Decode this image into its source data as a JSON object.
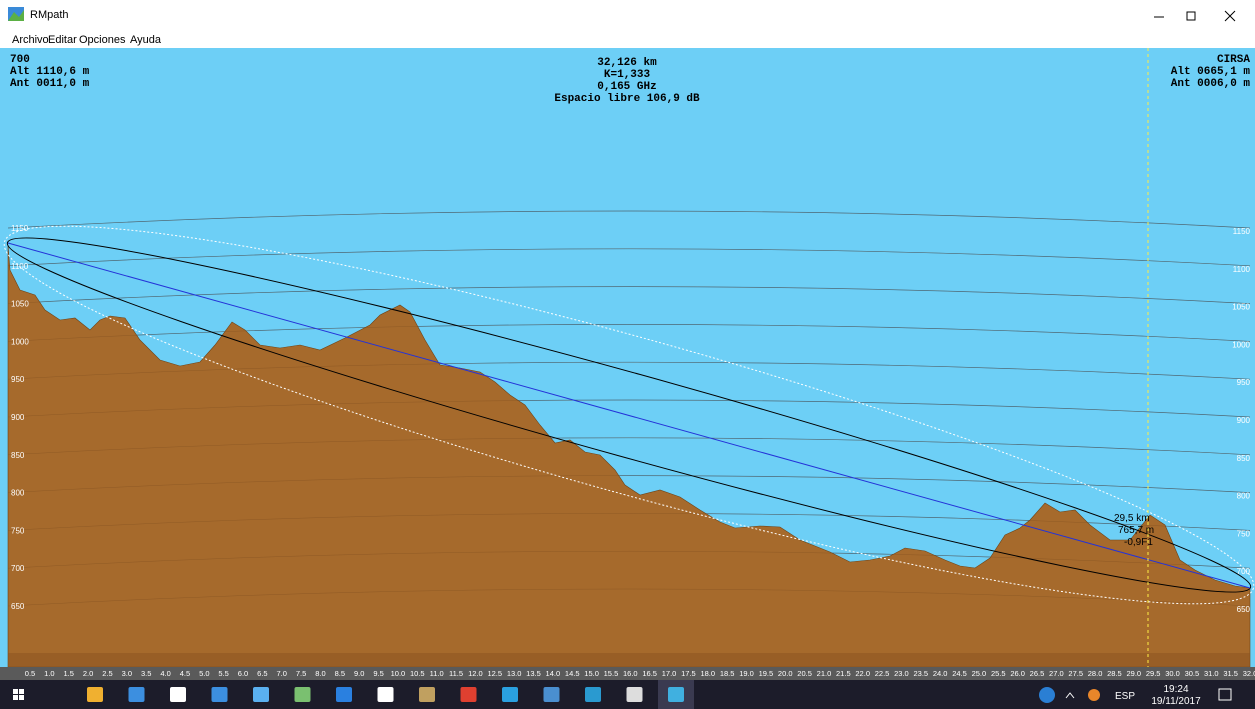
{
  "window": {
    "title": "RMpath"
  },
  "menu": [
    "Archivo",
    "Editar",
    "Opciones",
    "Ayuda"
  ],
  "left_station": {
    "name": "700",
    "alt": "Alt 1110,6 m",
    "ant": "Ant 0011,0 m"
  },
  "link": {
    "distance": "32,126 km",
    "k": "K=1,333",
    "frequency": "0,165 GHz",
    "free_space": "Espacio libre 106,9 dB"
  },
  "right_station": {
    "name": "CIRSA",
    "alt": "Alt 0665,1 m",
    "ant": "Ant 0006,0 m"
  },
  "elevation_labels": [
    "1150",
    "1100",
    "1050",
    "1000",
    "950",
    "900",
    "850",
    "800",
    "750",
    "700",
    "650"
  ],
  "km_labels": [
    "0.5",
    "1.0",
    "1.5",
    "2.0",
    "2.5",
    "3.0",
    "3.5",
    "4.0",
    "4.5",
    "5.0",
    "5.5",
    "6.0",
    "6.5",
    "7.0",
    "7.5",
    "8.0",
    "8.5",
    "9.0",
    "9.5",
    "10.0",
    "10.5",
    "11.0",
    "11.5",
    "12.0",
    "12.5",
    "13.0",
    "13.5",
    "14.0",
    "14.5",
    "15.0",
    "15.5",
    "16.0",
    "16.5",
    "17.0",
    "17.5",
    "18.0",
    "18.5",
    "19.0",
    "19.5",
    "20.0",
    "20.5",
    "21.0",
    "21.5",
    "22.0",
    "22.5",
    "23.0",
    "23.5",
    "24.0",
    "24.5",
    "25.0",
    "25.5",
    "26.0",
    "26.5",
    "27.0",
    "27.5",
    "28.0",
    "28.5",
    "29.0",
    "29.5",
    "30.0",
    "30.5",
    "31.0",
    "31.5",
    "32.0"
  ],
  "cursor": {
    "distance": "29,5 km",
    "height": "765,7 m",
    "clearance": "-0,9F1"
  },
  "taskbar": {
    "language": "ESP",
    "time": "19:24",
    "date": "19/11/2017"
  }
}
